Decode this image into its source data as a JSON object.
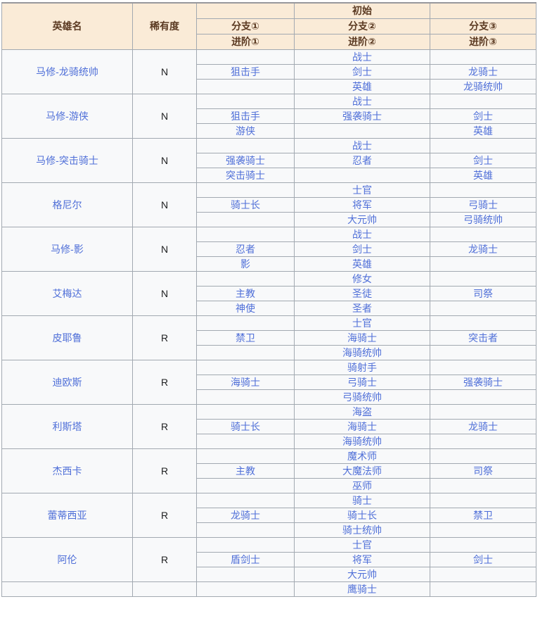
{
  "table": {
    "header": {
      "hero_col": "英雄名",
      "rarity_col": "稀有度",
      "initial_label": "初始",
      "branch_labels": [
        "分支①",
        "分支②",
        "分支③"
      ],
      "advance_labels": [
        "进阶①",
        "进阶②",
        "进阶③"
      ]
    },
    "colors": {
      "header_bg": "#faebd7",
      "header_text": "#5b3a22",
      "body_bg": "#f8f9fa",
      "border": "#a2a9b1",
      "link": "#4f6fd8",
      "rarity_text": "#202122"
    },
    "heroes": [
      {
        "name": "马修-龙骑统帅",
        "rarity": "N",
        "rows": [
          [
            "",
            "战士",
            ""
          ],
          [
            "狙击手",
            "剑士",
            "龙骑士"
          ],
          [
            "",
            "英雄",
            "龙骑统帅"
          ]
        ]
      },
      {
        "name": "马修-游侠",
        "rarity": "N",
        "rows": [
          [
            "",
            "战士",
            ""
          ],
          [
            "狙击手",
            "强袭骑士",
            "剑士"
          ],
          [
            "游侠",
            "",
            "英雄"
          ]
        ]
      },
      {
        "name": "马修-突击骑士",
        "rarity": "N",
        "rows": [
          [
            "",
            "战士",
            ""
          ],
          [
            "强袭骑士",
            "忍者",
            "剑士"
          ],
          [
            "突击骑士",
            "",
            "英雄"
          ]
        ]
      },
      {
        "name": "格尼尔",
        "rarity": "N",
        "rows": [
          [
            "",
            "士官",
            ""
          ],
          [
            "骑士长",
            "将军",
            "弓骑士"
          ],
          [
            "",
            "大元帅",
            "弓骑统帅"
          ]
        ]
      },
      {
        "name": "马修-影",
        "rarity": "N",
        "rows": [
          [
            "",
            "战士",
            ""
          ],
          [
            "忍者",
            "剑士",
            "龙骑士"
          ],
          [
            "影",
            "英雄",
            ""
          ]
        ]
      },
      {
        "name": "艾梅达",
        "rarity": "N",
        "rows": [
          [
            "",
            "修女",
            ""
          ],
          [
            "主教",
            "圣徒",
            "司祭"
          ],
          [
            "神使",
            "圣者",
            ""
          ]
        ]
      },
      {
        "name": "皮耶鲁",
        "rarity": "R",
        "rows": [
          [
            "",
            "士官",
            ""
          ],
          [
            "禁卫",
            "海骑士",
            "突击者"
          ],
          [
            "",
            "海骑统帅",
            ""
          ]
        ]
      },
      {
        "name": "迪欧斯",
        "rarity": "R",
        "rows": [
          [
            "",
            "骑射手",
            ""
          ],
          [
            "海骑士",
            "弓骑士",
            "强袭骑士"
          ],
          [
            "",
            "弓骑统帅",
            ""
          ]
        ]
      },
      {
        "name": "利斯塔",
        "rarity": "R",
        "rows": [
          [
            "",
            "海盗",
            ""
          ],
          [
            "骑士长",
            "海骑士",
            "龙骑士"
          ],
          [
            "",
            "海骑统帅",
            ""
          ]
        ]
      },
      {
        "name": "杰西卡",
        "rarity": "R",
        "rows": [
          [
            "",
            "魔术师",
            ""
          ],
          [
            "主教",
            "大魔法师",
            "司祭"
          ],
          [
            "",
            "巫师",
            ""
          ]
        ]
      },
      {
        "name": "蕾蒂西亚",
        "rarity": "R",
        "rows": [
          [
            "",
            "骑士",
            ""
          ],
          [
            "龙骑士",
            "骑士长",
            "禁卫"
          ],
          [
            "",
            "骑士统帅",
            ""
          ]
        ]
      },
      {
        "name": "阿伦",
        "rarity": "R",
        "rows": [
          [
            "",
            "士官",
            ""
          ],
          [
            "盾剑士",
            "将军",
            "剑士"
          ],
          [
            "",
            "大元帅",
            ""
          ]
        ]
      }
    ],
    "partial_row": {
      "cells": [
        "",
        "",
        "",
        "鹰骑士",
        ""
      ]
    }
  }
}
